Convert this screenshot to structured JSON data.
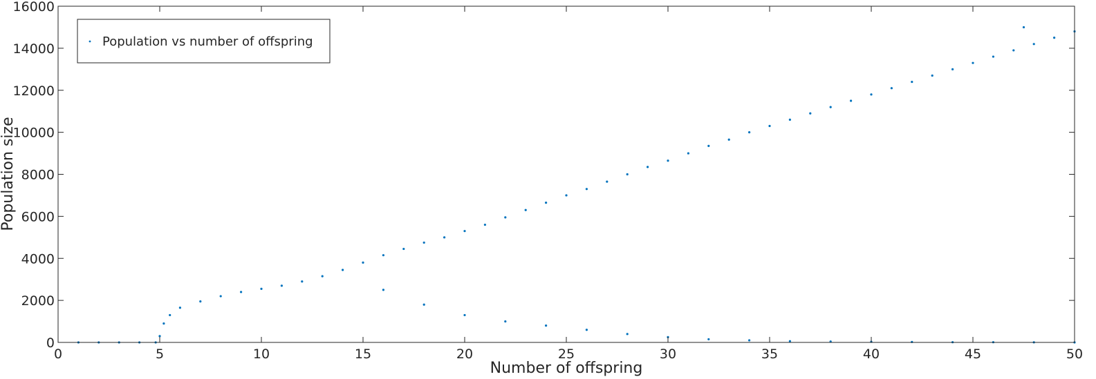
{
  "chart_data": {
    "type": "scatter",
    "title": "",
    "xlabel": "Number of offspring",
    "ylabel": "Population size",
    "xlim": [
      0,
      50
    ],
    "ylim": [
      0,
      16000
    ],
    "xticks": [
      0,
      5,
      10,
      15,
      20,
      25,
      30,
      35,
      40,
      45,
      50
    ],
    "yticks": [
      0,
      2000,
      4000,
      6000,
      8000,
      10000,
      12000,
      14000,
      16000
    ],
    "grid": false,
    "legend_position": "top-left",
    "series": [
      {
        "name": "Population vs  number of offspring",
        "color": "#0072BD",
        "marker": "dot",
        "points": [
          [
            1,
            0
          ],
          [
            2,
            0
          ],
          [
            3,
            0
          ],
          [
            4,
            0
          ],
          [
            4.8,
            0
          ],
          [
            5.0,
            300
          ],
          [
            5.2,
            900
          ],
          [
            5.5,
            1300
          ],
          [
            6,
            1650
          ],
          [
            7,
            1950
          ],
          [
            8,
            2200
          ],
          [
            9,
            2400
          ],
          [
            10,
            2550
          ],
          [
            11,
            2700
          ],
          [
            12,
            2900
          ],
          [
            13,
            3150
          ],
          [
            14,
            3450
          ],
          [
            15,
            3800
          ],
          [
            16,
            4150
          ],
          [
            17,
            4450
          ],
          [
            18,
            4750
          ],
          [
            19,
            5000
          ],
          [
            20,
            5300
          ],
          [
            21,
            5600
          ],
          [
            22,
            5950
          ],
          [
            23,
            6300
          ],
          [
            24,
            6650
          ],
          [
            25,
            7000
          ],
          [
            26,
            7300
          ],
          [
            27,
            7650
          ],
          [
            28,
            8000
          ],
          [
            29,
            8350
          ],
          [
            30,
            8650
          ],
          [
            31,
            9000
          ],
          [
            32,
            9350
          ],
          [
            33,
            9650
          ],
          [
            34,
            10000
          ],
          [
            35,
            10300
          ],
          [
            36,
            10600
          ],
          [
            37,
            10900
          ],
          [
            38,
            11200
          ],
          [
            39,
            11500
          ],
          [
            40,
            11800
          ],
          [
            41,
            12100
          ],
          [
            42,
            12400
          ],
          [
            43,
            12700
          ],
          [
            44,
            13000
          ],
          [
            45,
            13300
          ],
          [
            46,
            13600
          ],
          [
            47,
            13900
          ],
          [
            48,
            14200
          ],
          [
            49,
            14500
          ],
          [
            50,
            14800
          ],
          [
            47.5,
            15000
          ],
          [
            16,
            2500
          ],
          [
            18,
            1800
          ],
          [
            20,
            1300
          ],
          [
            22,
            1000
          ],
          [
            24,
            800
          ],
          [
            26,
            600
          ],
          [
            28,
            400
          ],
          [
            30,
            250
          ],
          [
            32,
            150
          ],
          [
            34,
            100
          ],
          [
            36,
            60
          ],
          [
            38,
            40
          ],
          [
            40,
            30
          ],
          [
            42,
            20
          ],
          [
            44,
            10
          ],
          [
            46,
            10
          ],
          [
            48,
            5
          ],
          [
            50,
            0
          ]
        ]
      }
    ]
  }
}
